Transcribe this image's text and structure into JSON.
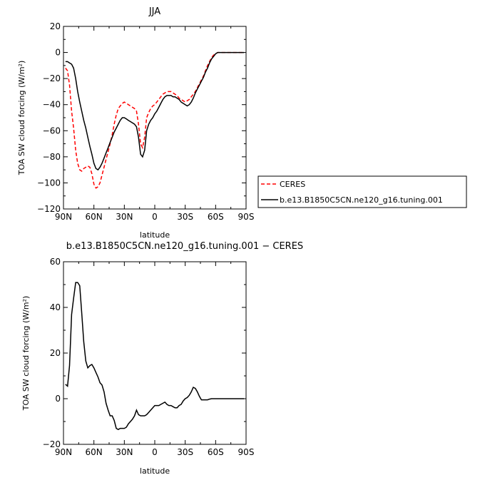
{
  "chart_data": [
    {
      "type": "line",
      "title": "JJA",
      "xlabel": "latitude",
      "ylabel": "TOA SW cloud forcing (W/m²)",
      "xlim": [
        90,
        -90
      ],
      "ylim": [
        -120,
        20
      ],
      "xticks": [
        90,
        60,
        30,
        0,
        -30,
        -60,
        -90
      ],
      "xtick_labels": [
        "90N",
        "60N",
        "30N",
        "0",
        "30S",
        "60S",
        "90S"
      ],
      "yticks": [
        20,
        0,
        -20,
        -40,
        -60,
        -80,
        -100,
        -120
      ],
      "ytick_labels": [
        "20",
        "0",
        "−20",
        "−40",
        "−60",
        "−80",
        "−100",
        "−120"
      ],
      "legend": "outside right",
      "series": [
        {
          "name": "CERES",
          "color": "#ff0000",
          "dash": "dashed",
          "x": [
            88,
            86,
            84,
            82,
            80,
            78,
            76,
            74,
            72,
            70,
            68,
            66,
            64,
            62,
            60,
            58,
            56,
            54,
            52,
            50,
            48,
            46,
            44,
            42,
            40,
            38,
            36,
            34,
            32,
            30,
            28,
            26,
            24,
            22,
            20,
            18,
            16,
            14,
            12,
            10,
            8,
            6,
            4,
            2,
            0,
            -2,
            -4,
            -6,
            -8,
            -10,
            -12,
            -14,
            -16,
            -18,
            -20,
            -22,
            -24,
            -26,
            -28,
            -30,
            -32,
            -34,
            -36,
            -38,
            -40,
            -42,
            -44,
            -46,
            -48,
            -50,
            -52,
            -54,
            -56,
            -58,
            -60,
            -62,
            -64,
            -66,
            -68,
            -70,
            -72,
            -74,
            -76,
            -78,
            -80,
            -82,
            -84,
            -86,
            -88
          ],
          "y": [
            -12,
            -14,
            -25,
            -45,
            -58,
            -75,
            -85,
            -90,
            -91,
            -89,
            -88,
            -87,
            -88,
            -93,
            -101,
            -104,
            -103,
            -100,
            -94,
            -88,
            -82,
            -76,
            -70,
            -63,
            -55,
            -48,
            -43,
            -41,
            -39,
            -38,
            -39,
            -40,
            -41,
            -42,
            -43,
            -45,
            -55,
            -70,
            -73,
            -65,
            -50,
            -46,
            -43,
            -41,
            -40,
            -38,
            -36,
            -34,
            -32,
            -31,
            -30,
            -30,
            -30,
            -31,
            -32,
            -33,
            -35,
            -36,
            -37,
            -38,
            -37,
            -36,
            -34,
            -32,
            -30,
            -27,
            -24,
            -21,
            -18,
            -14,
            -10,
            -7,
            -4,
            -2,
            -1,
            0,
            0,
            0,
            0,
            0,
            0,
            0,
            0,
            0,
            0,
            0,
            0,
            0,
            0
          ]
        },
        {
          "name": "b.e13.B1850C5CN.ne120_g16.tuning.001",
          "color": "#000000",
          "dash": "solid",
          "x": [
            88,
            86,
            84,
            82,
            80,
            78,
            76,
            74,
            72,
            70,
            68,
            66,
            64,
            62,
            60,
            58,
            56,
            54,
            52,
            50,
            48,
            46,
            44,
            42,
            40,
            38,
            36,
            34,
            32,
            30,
            28,
            26,
            24,
            22,
            20,
            18,
            16,
            14,
            12,
            10,
            8,
            6,
            4,
            2,
            0,
            -2,
            -4,
            -6,
            -8,
            -10,
            -12,
            -14,
            -16,
            -18,
            -20,
            -22,
            -24,
            -26,
            -28,
            -30,
            -32,
            -34,
            -36,
            -38,
            -40,
            -42,
            -44,
            -46,
            -48,
            -50,
            -52,
            -54,
            -56,
            -58,
            -60,
            -62,
            -64,
            -66,
            -68,
            -70,
            -72,
            -74,
            -76,
            -78,
            -80,
            -82,
            -84,
            -86,
            -88
          ],
          "y": [
            -7,
            -7,
            -8,
            -9,
            -12,
            -20,
            -30,
            -38,
            -45,
            -52,
            -58,
            -65,
            -72,
            -78,
            -85,
            -89,
            -90,
            -88,
            -85,
            -81,
            -77,
            -73,
            -69,
            -65,
            -61,
            -58,
            -55,
            -52,
            -50,
            -50,
            -51,
            -52,
            -53,
            -54,
            -55,
            -57,
            -65,
            -78,
            -80,
            -75,
            -60,
            -55,
            -52,
            -50,
            -47,
            -45,
            -42,
            -39,
            -36,
            -34,
            -33,
            -33,
            -33,
            -34,
            -34,
            -35,
            -36,
            -38,
            -39,
            -40,
            -41,
            -40,
            -38,
            -35,
            -31,
            -28,
            -25,
            -22,
            -19,
            -15,
            -12,
            -8,
            -5,
            -3,
            -1,
            0,
            0,
            0,
            0,
            0,
            0,
            0,
            0,
            0,
            0,
            0,
            0,
            0,
            0
          ]
        }
      ]
    },
    {
      "type": "line",
      "title": "b.e13.B1850C5CN.ne120_g16.tuning.001 − CERES",
      "xlabel": "latitude",
      "ylabel": "TOA SW cloud forcing (W/m²)",
      "xlim": [
        90,
        -90
      ],
      "ylim": [
        -20,
        60
      ],
      "xticks": [
        90,
        60,
        30,
        0,
        -30,
        -60,
        -90
      ],
      "xtick_labels": [
        "90N",
        "60N",
        "30N",
        "0",
        "30S",
        "60S",
        "90S"
      ],
      "yticks": [
        60,
        40,
        20,
        0,
        -20
      ],
      "ytick_labels": [
        "60",
        "40",
        "20",
        "0",
        "−20"
      ],
      "series": [
        {
          "color": "#000000",
          "dash": "solid",
          "x": [
            88,
            86,
            84,
            82,
            80,
            78,
            76,
            74,
            72,
            70,
            68,
            66,
            64,
            62,
            60,
            58,
            56,
            54,
            52,
            50,
            48,
            46,
            44,
            42,
            40,
            38,
            36,
            34,
            32,
            30,
            28,
            26,
            24,
            22,
            20,
            18,
            16,
            14,
            12,
            10,
            8,
            6,
            4,
            2,
            0,
            -2,
            -4,
            -6,
            -8,
            -10,
            -12,
            -14,
            -16,
            -18,
            -20,
            -22,
            -24,
            -26,
            -28,
            -30,
            -32,
            -34,
            -36,
            -38,
            -40,
            -42,
            -44,
            -46,
            -48,
            -50,
            -52,
            -54,
            -56,
            -58,
            -60,
            -62,
            -64,
            -66,
            -68,
            -70,
            -72,
            -74,
            -76,
            -78,
            -80,
            -82,
            -84,
            -86,
            -88
          ],
          "y": [
            6.3,
            5.5,
            14.5,
            36.9,
            44,
            50.9,
            50.9,
            49.5,
            37.5,
            25,
            16.5,
            13.5,
            14.5,
            15,
            13.5,
            11.5,
            9.5,
            7,
            6,
            3,
            -2,
            -5,
            -7.5,
            -7.5,
            -9.5,
            -13,
            -13.5,
            -13,
            -13,
            -13,
            -12.5,
            -11,
            -10,
            -9,
            -7.5,
            -5,
            -7,
            -7.5,
            -7.5,
            -7.5,
            -7,
            -6,
            -5,
            -4,
            -3,
            -3,
            -3,
            -2.5,
            -2,
            -1.5,
            -2.5,
            -3,
            -3,
            -3.5,
            -4,
            -4,
            -3,
            -2.5,
            -1,
            0,
            0.5,
            1.5,
            3,
            5,
            4.5,
            3,
            1,
            -0.5,
            -0.5,
            -0.5,
            -0.5,
            -0.2,
            0,
            0,
            0,
            0,
            0,
            0,
            0,
            0,
            0,
            0,
            0,
            0,
            0,
            0,
            0,
            0,
            0
          ]
        }
      ]
    }
  ]
}
